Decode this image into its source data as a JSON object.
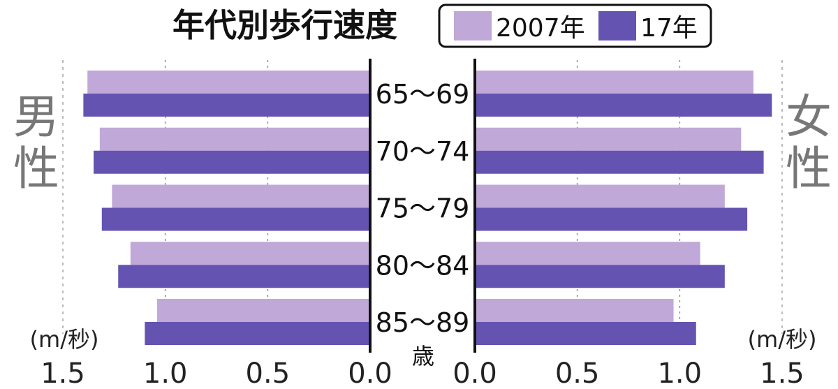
{
  "chart_data": {
    "type": "bar",
    "title": "年代別歩行速度",
    "categories": [
      "65〜69",
      "70〜74",
      "75〜79",
      "80〜84",
      "85〜89"
    ],
    "category_suffix": "歳",
    "left_panel_label": "男性",
    "right_panel_label": "女性",
    "unit": "(m/秒)",
    "xlim": [
      0,
      1.5
    ],
    "x_ticks": [
      "1.5",
      "1.0",
      "0.5",
      "0.0"
    ],
    "x_ticks_right": [
      "0.0",
      "0.5",
      "1.0",
      "1.5"
    ],
    "grid": true,
    "legend_position": "top-center",
    "series": [
      {
        "name": "2007年",
        "color": "#c0a8d8",
        "male": [
          1.38,
          1.32,
          1.26,
          1.17,
          1.04
        ],
        "female": [
          1.36,
          1.3,
          1.22,
          1.1,
          0.97
        ]
      },
      {
        "name": "17年",
        "color": "#6553b2",
        "male": [
          1.4,
          1.35,
          1.31,
          1.23,
          1.1
        ],
        "female": [
          1.45,
          1.41,
          1.33,
          1.22,
          1.08
        ]
      }
    ]
  }
}
